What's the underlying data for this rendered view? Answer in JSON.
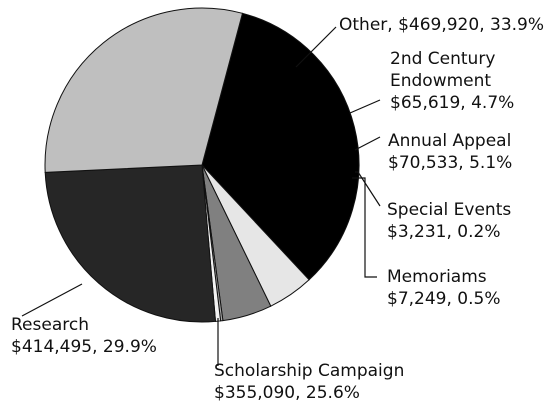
{
  "chart_data": {
    "type": "pie",
    "title": "",
    "slices": [
      {
        "name": "Other",
        "value": 469920,
        "percent": 33.9,
        "color": "#000000",
        "label_lines": [
          "Other, $469,920,  33.9%"
        ]
      },
      {
        "name": "2nd Century Endowment",
        "value": 65619,
        "percent": 4.7,
        "color": "#e6e6e6",
        "label_lines": [
          "2nd Century",
          "Endowment",
          "$65,619,  4.7%"
        ]
      },
      {
        "name": "Annual Appeal",
        "value": 70533,
        "percent": 5.1,
        "color": "#808080",
        "label_lines": [
          "Annual Appeal",
          "$70,533,  5.1%"
        ]
      },
      {
        "name": "Special Events",
        "value": 3231,
        "percent": 0.2,
        "color": "#a6a6a6",
        "label_lines": [
          "Special Events",
          "$3,231,  0.2%"
        ]
      },
      {
        "name": "Memoriams",
        "value": 7249,
        "percent": 0.5,
        "color": "#f2f2f2",
        "label_lines": [
          "Memoriams",
          "$7,249,  0.5%"
        ]
      },
      {
        "name": "Scholarship Campaign",
        "value": 355090,
        "percent": 25.6,
        "color": "#262626",
        "label_lines": [
          "Scholarship Campaign",
          "$355,090,  25.6%"
        ]
      },
      {
        "name": "Research",
        "value": 414495,
        "percent": 29.9,
        "color": "#bfbfbf",
        "label_lines": [
          "Research",
          "$414,495,  29.9%"
        ]
      }
    ]
  }
}
